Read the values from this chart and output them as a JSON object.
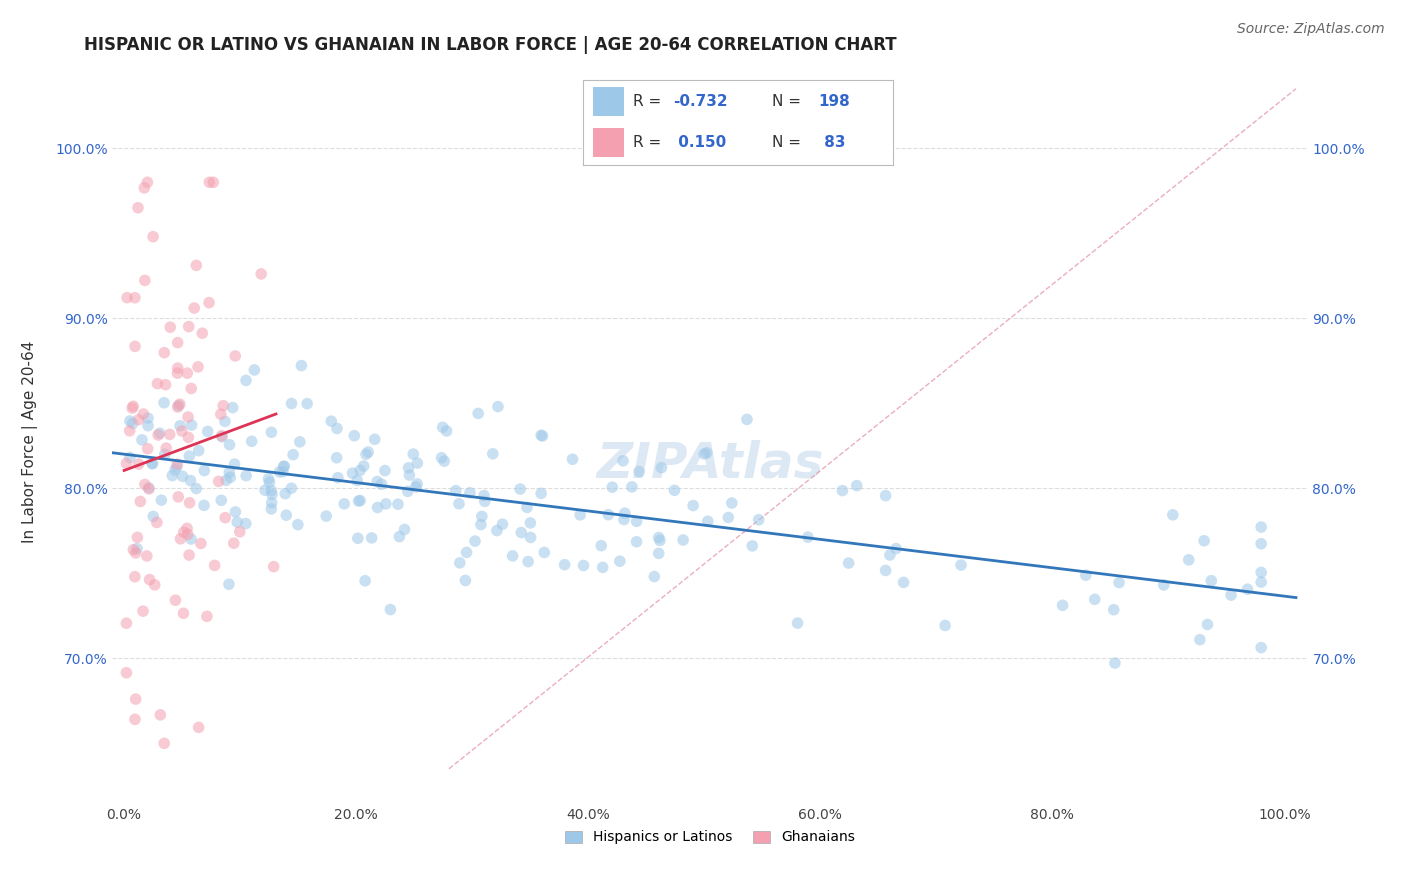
{
  "title": "HISPANIC OR LATINO VS GHANAIAN IN LABOR FORCE | AGE 20-64 CORRELATION CHART",
  "source": "Source: ZipAtlas.com",
  "ylabel": "In Labor Force | Age 20-64",
  "watermark": "ZIPAtlas",
  "blue_R": -0.732,
  "blue_N": 198,
  "pink_R": 0.15,
  "pink_N": 83,
  "xlim": [
    -0.01,
    1.02
  ],
  "ylim": [
    0.615,
    1.04
  ],
  "ytick_positions": [
    0.7,
    0.8,
    0.9,
    1.0
  ],
  "ytick_labels": [
    "70.0%",
    "80.0%",
    "90.0%",
    "100.0%"
  ],
  "xtick_positions": [
    0.0,
    0.2,
    0.4,
    0.6,
    0.8,
    1.0
  ],
  "xtick_labels": [
    "0.0%",
    "20.0%",
    "40.0%",
    "60.0%",
    "80.0%",
    "100.0%"
  ],
  "blue_dot_color": "#9ec8e8",
  "pink_dot_color": "#f4a0b0",
  "blue_line_color": "#3377bb",
  "pink_line_color": "#dd3355",
  "dashed_line_color": "#e8a0b0",
  "background_color": "#ffffff",
  "grid_color": "#dddddd",
  "title_color": "#222222",
  "title_fontsize": 12,
  "axis_label_fontsize": 11,
  "tick_fontsize": 10,
  "source_fontsize": 10,
  "watermark_fontsize": 36,
  "watermark_color": "#dde8f5",
  "dot_alpha": 0.55,
  "dot_size": 70,
  "legend_text_color_blue": "#3366cc",
  "legend_text_color_pink": "#cc3366",
  "legend_label_color": "#333333"
}
